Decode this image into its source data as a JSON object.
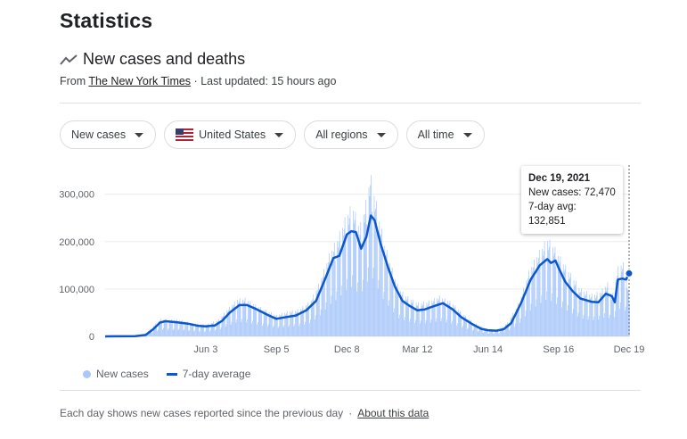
{
  "page": {
    "title": "Statistics"
  },
  "section": {
    "title": "New cases and deaths",
    "icon": "trending-line-icon",
    "source_prefix": "From",
    "source_name": "The New York Times",
    "separator": "·",
    "updated": "Last updated: 15 hours ago"
  },
  "filters": [
    {
      "label": "New cases"
    },
    {
      "label": "United States",
      "icon": "us-flag-icon"
    },
    {
      "label": "All regions"
    },
    {
      "label": "All time"
    }
  ],
  "tooltip": {
    "date": "Dec 19, 2021",
    "new_cases": "New cases: 72,470",
    "avg": "7-day avg: 132,851"
  },
  "legend": {
    "bars": "New cases",
    "line": "7-day average"
  },
  "footer": {
    "note": "Each day shows new cases reported since the previous day",
    "separator": "·",
    "link": "About this data"
  },
  "colors": {
    "bars": "#a8c7fa",
    "line": "#0b57d0",
    "grid": "#ececec",
    "text": "#5f6368"
  },
  "chart_data": {
    "type": "bar",
    "overlay": "line",
    "title": "",
    "xlabel": "",
    "ylabel": "",
    "ylim": [
      0,
      320000
    ],
    "yticks": [
      0,
      100000,
      200000,
      300000
    ],
    "ytick_labels": [
      "0",
      "100,000",
      "200,000",
      "300,000"
    ],
    "x_range": [
      "2020-01-21",
      "2021-12-19"
    ],
    "xtick_labels": [
      "Jun 3",
      "Sep 5",
      "Dec 8",
      "Mar 12",
      "Jun 14",
      "Sep 16",
      "Dec 19"
    ],
    "xtick_dates": [
      "2020-06-03",
      "2020-09-05",
      "2020-12-08",
      "2021-03-12",
      "2021-06-14",
      "2021-09-16",
      "2021-12-19"
    ],
    "grid": true,
    "legend_position": "bottom-left",
    "series": [
      {
        "name": "New cases",
        "kind": "bars",
        "points": [
          [
            "2020-01-21",
            0
          ],
          [
            "2020-03-10",
            1000
          ],
          [
            "2020-03-20",
            12000
          ],
          [
            "2020-04-03",
            31000
          ],
          [
            "2020-04-15",
            30000
          ],
          [
            "2020-05-01",
            29000
          ],
          [
            "2020-05-15",
            24000
          ],
          [
            "2020-06-03",
            21000
          ],
          [
            "2020-06-20",
            30000
          ],
          [
            "2020-07-01",
            48000
          ],
          [
            "2020-07-15",
            67000
          ],
          [
            "2020-07-25",
            68000
          ],
          [
            "2020-08-10",
            55000
          ],
          [
            "2020-08-25",
            45000
          ],
          [
            "2020-09-05",
            38000
          ],
          [
            "2020-09-20",
            45000
          ],
          [
            "2020-10-05",
            48000
          ],
          [
            "2020-10-20",
            63000
          ],
          [
            "2020-11-01",
            95000
          ],
          [
            "2020-11-15",
            150000
          ],
          [
            "2020-11-25",
            175000
          ],
          [
            "2020-12-08",
            220000
          ],
          [
            "2020-12-15",
            235000
          ],
          [
            "2020-12-25",
            195000
          ],
          [
            "2021-01-02",
            240000
          ],
          [
            "2021-01-08",
            290000
          ],
          [
            "2021-01-15",
            245000
          ],
          [
            "2021-01-25",
            175000
          ],
          [
            "2021-02-05",
            125000
          ],
          [
            "2021-02-15",
            85000
          ],
          [
            "2021-02-25",
            72000
          ],
          [
            "2021-03-12",
            60000
          ],
          [
            "2021-03-25",
            62000
          ],
          [
            "2021-04-10",
            72000
          ],
          [
            "2021-04-25",
            62000
          ],
          [
            "2021-05-10",
            42000
          ],
          [
            "2021-05-25",
            25000
          ],
          [
            "2021-06-14",
            12000
          ],
          [
            "2021-06-28",
            12000
          ],
          [
            "2021-07-10",
            25000
          ],
          [
            "2021-07-25",
            60000
          ],
          [
            "2021-08-08",
            120000
          ],
          [
            "2021-08-20",
            150000
          ],
          [
            "2021-09-01",
            175000
          ],
          [
            "2021-09-10",
            160000
          ],
          [
            "2021-09-16",
            145000
          ],
          [
            "2021-09-30",
            115000
          ],
          [
            "2021-10-15",
            85000
          ],
          [
            "2021-10-30",
            75000
          ],
          [
            "2021-11-10",
            80000
          ],
          [
            "2021-11-20",
            95000
          ],
          [
            "2021-11-26",
            70000
          ],
          [
            "2021-12-05",
            130000
          ],
          [
            "2021-12-12",
            130000
          ],
          [
            "2021-12-19",
            72470
          ]
        ]
      },
      {
        "name": "7-day average",
        "kind": "line",
        "points": [
          [
            "2020-01-21",
            0
          ],
          [
            "2020-03-01",
            500
          ],
          [
            "2020-03-15",
            3000
          ],
          [
            "2020-03-25",
            15000
          ],
          [
            "2020-04-03",
            29000
          ],
          [
            "2020-04-10",
            32000
          ],
          [
            "2020-04-25",
            30000
          ],
          [
            "2020-05-10",
            27000
          ],
          [
            "2020-05-25",
            22000
          ],
          [
            "2020-06-03",
            21000
          ],
          [
            "2020-06-15",
            23000
          ],
          [
            "2020-06-25",
            33000
          ],
          [
            "2020-07-05",
            50000
          ],
          [
            "2020-07-18",
            66000
          ],
          [
            "2020-07-28",
            66000
          ],
          [
            "2020-08-10",
            57000
          ],
          [
            "2020-08-25",
            45000
          ],
          [
            "2020-09-05",
            37000
          ],
          [
            "2020-09-15",
            40000
          ],
          [
            "2020-10-01",
            44000
          ],
          [
            "2020-10-15",
            55000
          ],
          [
            "2020-10-28",
            75000
          ],
          [
            "2020-11-10",
            125000
          ],
          [
            "2020-11-20",
            165000
          ],
          [
            "2020-11-28",
            170000
          ],
          [
            "2020-12-08",
            215000
          ],
          [
            "2020-12-14",
            222000
          ],
          [
            "2020-12-20",
            220000
          ],
          [
            "2020-12-27",
            185000
          ],
          [
            "2021-01-03",
            210000
          ],
          [
            "2021-01-09",
            255000
          ],
          [
            "2021-01-14",
            245000
          ],
          [
            "2021-01-22",
            195000
          ],
          [
            "2021-02-01",
            145000
          ],
          [
            "2021-02-10",
            105000
          ],
          [
            "2021-02-20",
            75000
          ],
          [
            "2021-03-01",
            65000
          ],
          [
            "2021-03-12",
            55000
          ],
          [
            "2021-03-22",
            57000
          ],
          [
            "2021-04-05",
            65000
          ],
          [
            "2021-04-15",
            70000
          ],
          [
            "2021-04-28",
            57000
          ],
          [
            "2021-05-10",
            40000
          ],
          [
            "2021-05-25",
            25000
          ],
          [
            "2021-06-05",
            16000
          ],
          [
            "2021-06-14",
            13000
          ],
          [
            "2021-06-25",
            12000
          ],
          [
            "2021-07-05",
            15000
          ],
          [
            "2021-07-15",
            28000
          ],
          [
            "2021-07-28",
            70000
          ],
          [
            "2021-08-10",
            120000
          ],
          [
            "2021-08-22",
            150000
          ],
          [
            "2021-09-01",
            163000
          ],
          [
            "2021-09-06",
            155000
          ],
          [
            "2021-09-12",
            160000
          ],
          [
            "2021-09-16",
            145000
          ],
          [
            "2021-09-25",
            115000
          ],
          [
            "2021-10-05",
            95000
          ],
          [
            "2021-10-15",
            80000
          ],
          [
            "2021-10-30",
            73000
          ],
          [
            "2021-11-08",
            72000
          ],
          [
            "2021-11-18",
            90000
          ],
          [
            "2021-11-26",
            85000
          ],
          [
            "2021-11-30",
            72000
          ],
          [
            "2021-12-04",
            120000
          ],
          [
            "2021-12-10",
            122000
          ],
          [
            "2021-12-15",
            120000
          ],
          [
            "2021-12-19",
            132851
          ]
        ]
      }
    ],
    "highlight": {
      "date": "2021-12-19",
      "new_cases": 72470,
      "avg": 132851
    }
  }
}
